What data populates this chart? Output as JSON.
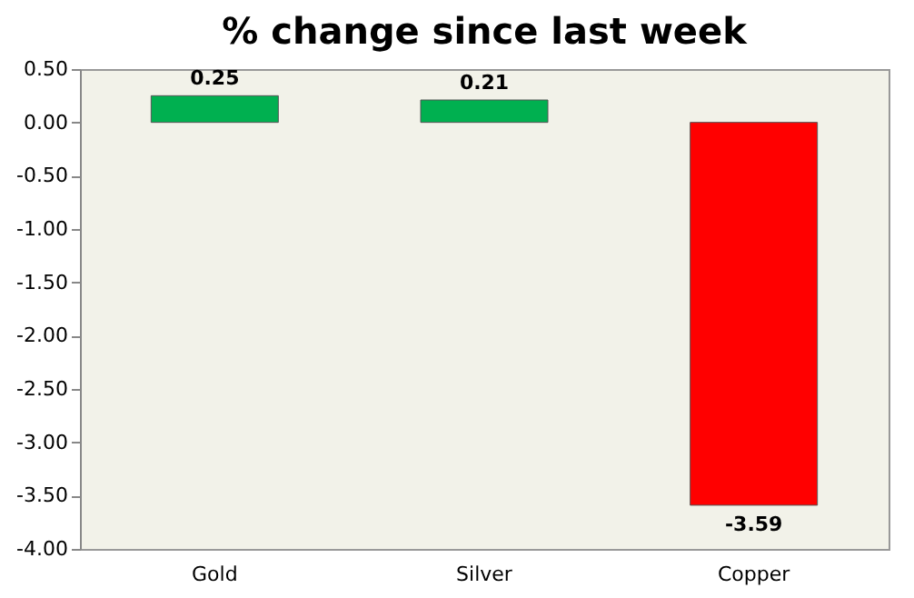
{
  "chart_data": {
    "type": "bar",
    "title": "% change since last week",
    "categories": [
      "Gold",
      "Silver",
      "Copper"
    ],
    "values": [
      0.25,
      0.21,
      -3.59
    ],
    "colors": [
      "#00b050",
      "#00b050",
      "#ff0000"
    ],
    "ylim": [
      -4,
      0.5
    ],
    "yticks": [
      {
        "value": -4,
        "label": "-4.00"
      },
      {
        "value": -3.5,
        "label": "-3.50"
      },
      {
        "value": -3,
        "label": "-3.00"
      },
      {
        "value": -2.5,
        "label": "-2.50"
      },
      {
        "value": -2,
        "label": "-2.00"
      },
      {
        "value": -1.5,
        "label": "-1.50"
      },
      {
        "value": -1,
        "label": "-1.00"
      },
      {
        "value": -0.5,
        "label": "-0.50"
      },
      {
        "value": 0,
        "label": "0.00"
      },
      {
        "value": 0.5,
        "label": "0.50"
      }
    ],
    "data_labels": true,
    "grid": false,
    "legend": false
  }
}
